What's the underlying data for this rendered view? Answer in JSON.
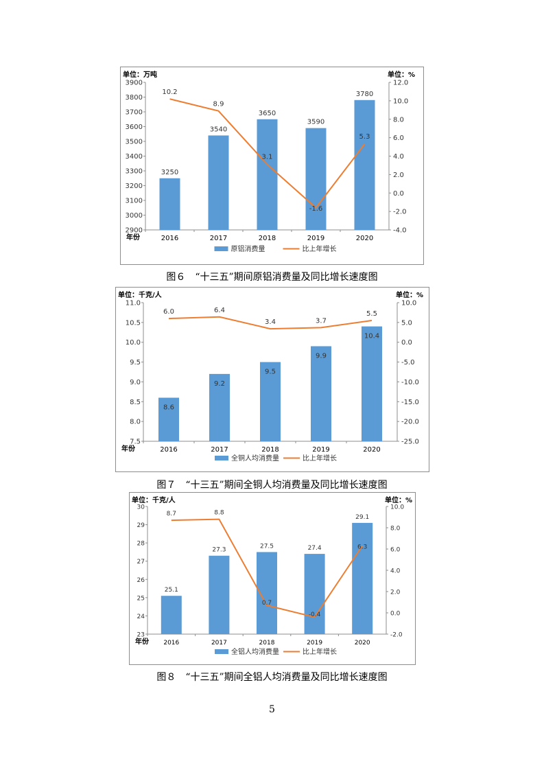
{
  "figures": [
    {
      "caption": "图６　“十三五”期间原铝消费量及同比增长速度图",
      "chart_data": {
        "type": "bar",
        "title": "",
        "xlabel": "年份",
        "ylabel": "单位：万吨",
        "y2label": "单位：%",
        "categories": [
          "2016",
          "2017",
          "2018",
          "2019",
          "2020"
        ],
        "ylim": [
          2900,
          3900
        ],
        "yticks": [
          "2900",
          "3000",
          "3100",
          "3200",
          "3300",
          "3400",
          "3500",
          "3600",
          "3700",
          "3800",
          "3900"
        ],
        "y2lim": [
          -4.0,
          12.0
        ],
        "y2ticks": [
          "-4.0",
          "-2.0",
          "0.0",
          "2.0",
          "4.0",
          "6.0",
          "8.0",
          "10.0",
          "12.0"
        ],
        "grid": false,
        "legend_position": "bottom",
        "series": [
          {
            "name": "原铝消费量",
            "type": "bar",
            "axis": "left",
            "color": "#5b9bd5",
            "values": [
              3250,
              3540,
              3650,
              3590,
              3780
            ],
            "labels": [
              "3250",
              "3540",
              "3650",
              "3590",
              "3780"
            ]
          },
          {
            "name": "比上年增长",
            "type": "line",
            "axis": "right",
            "color": "#ed7d31",
            "values": [
              10.2,
              8.9,
              3.1,
              -1.6,
              5.3
            ],
            "labels": [
              "10.2",
              "8.9",
              "3.1",
              "-1.6",
              "5.3"
            ]
          }
        ]
      }
    },
    {
      "caption": "图７　“十三五”期间全铜人均消费量及同比增长速度图",
      "chart_data": {
        "type": "bar",
        "title": "",
        "xlabel": "年份",
        "ylabel": "单位：千克/人",
        "y2label": "单位：%",
        "categories": [
          "2016",
          "2017",
          "2018",
          "2019",
          "2020"
        ],
        "ylim": [
          7.5,
          11.0
        ],
        "yticks": [
          "7.5",
          "8.0",
          "8.5",
          "9.0",
          "9.5",
          "10.0",
          "10.5",
          "11.0"
        ],
        "y2lim": [
          -25.0,
          10.0
        ],
        "y2ticks": [
          "-25.0",
          "-20.0",
          "-15.0",
          "-10.0",
          "-5.0",
          "0.0",
          "5.0",
          "10.0"
        ],
        "grid": false,
        "legend_position": "bottom",
        "series": [
          {
            "name": "全铜人均消费量",
            "type": "bar",
            "axis": "left",
            "color": "#5b9bd5",
            "values": [
              8.6,
              9.2,
              9.5,
              9.9,
              10.4
            ],
            "labels": [
              "8.6",
              "9.2",
              "9.5",
              "9.9",
              "10.4"
            ]
          },
          {
            "name": "比上年增长",
            "type": "line",
            "axis": "right",
            "color": "#ed7d31",
            "values": [
              6.0,
              6.4,
              3.4,
              3.7,
              5.5
            ],
            "labels": [
              "6.0",
              "6.4",
              "3.4",
              "3.7",
              "5.5"
            ]
          }
        ]
      }
    },
    {
      "caption": "图８　“十三五”期间全铝人均消费量及同比增长速度图",
      "chart_data": {
        "type": "bar",
        "title": "",
        "xlabel": "年份",
        "ylabel": "单位：千克/人",
        "y2label": "单位：%",
        "categories": [
          "2016",
          "2017",
          "2018",
          "2019",
          "2020"
        ],
        "ylim": [
          23,
          30
        ],
        "yticks": [
          "23",
          "24",
          "25",
          "26",
          "27",
          "28",
          "29",
          "30"
        ],
        "y2lim": [
          -2.0,
          10.0
        ],
        "y2ticks": [
          "-2.0",
          "0.0",
          "2.0",
          "4.0",
          "6.0",
          "8.0",
          "10.0"
        ],
        "grid": false,
        "legend_position": "bottom",
        "series": [
          {
            "name": "全铝人均消费量",
            "type": "bar",
            "axis": "left",
            "color": "#5b9bd5",
            "values": [
              25.1,
              27.3,
              27.5,
              27.4,
              29.1
            ],
            "labels": [
              "25.1",
              "27.3",
              "27.5",
              "27.4",
              "29.1"
            ]
          },
          {
            "name": "比上年增长",
            "type": "line",
            "axis": "right",
            "color": "#ed7d31",
            "values": [
              8.7,
              8.8,
              0.7,
              -0.4,
              6.3
            ],
            "labels": [
              "8.7",
              "8.8",
              "0.7",
              "-0.4",
              "6.3"
            ]
          }
        ]
      }
    }
  ],
  "page_number": "5"
}
